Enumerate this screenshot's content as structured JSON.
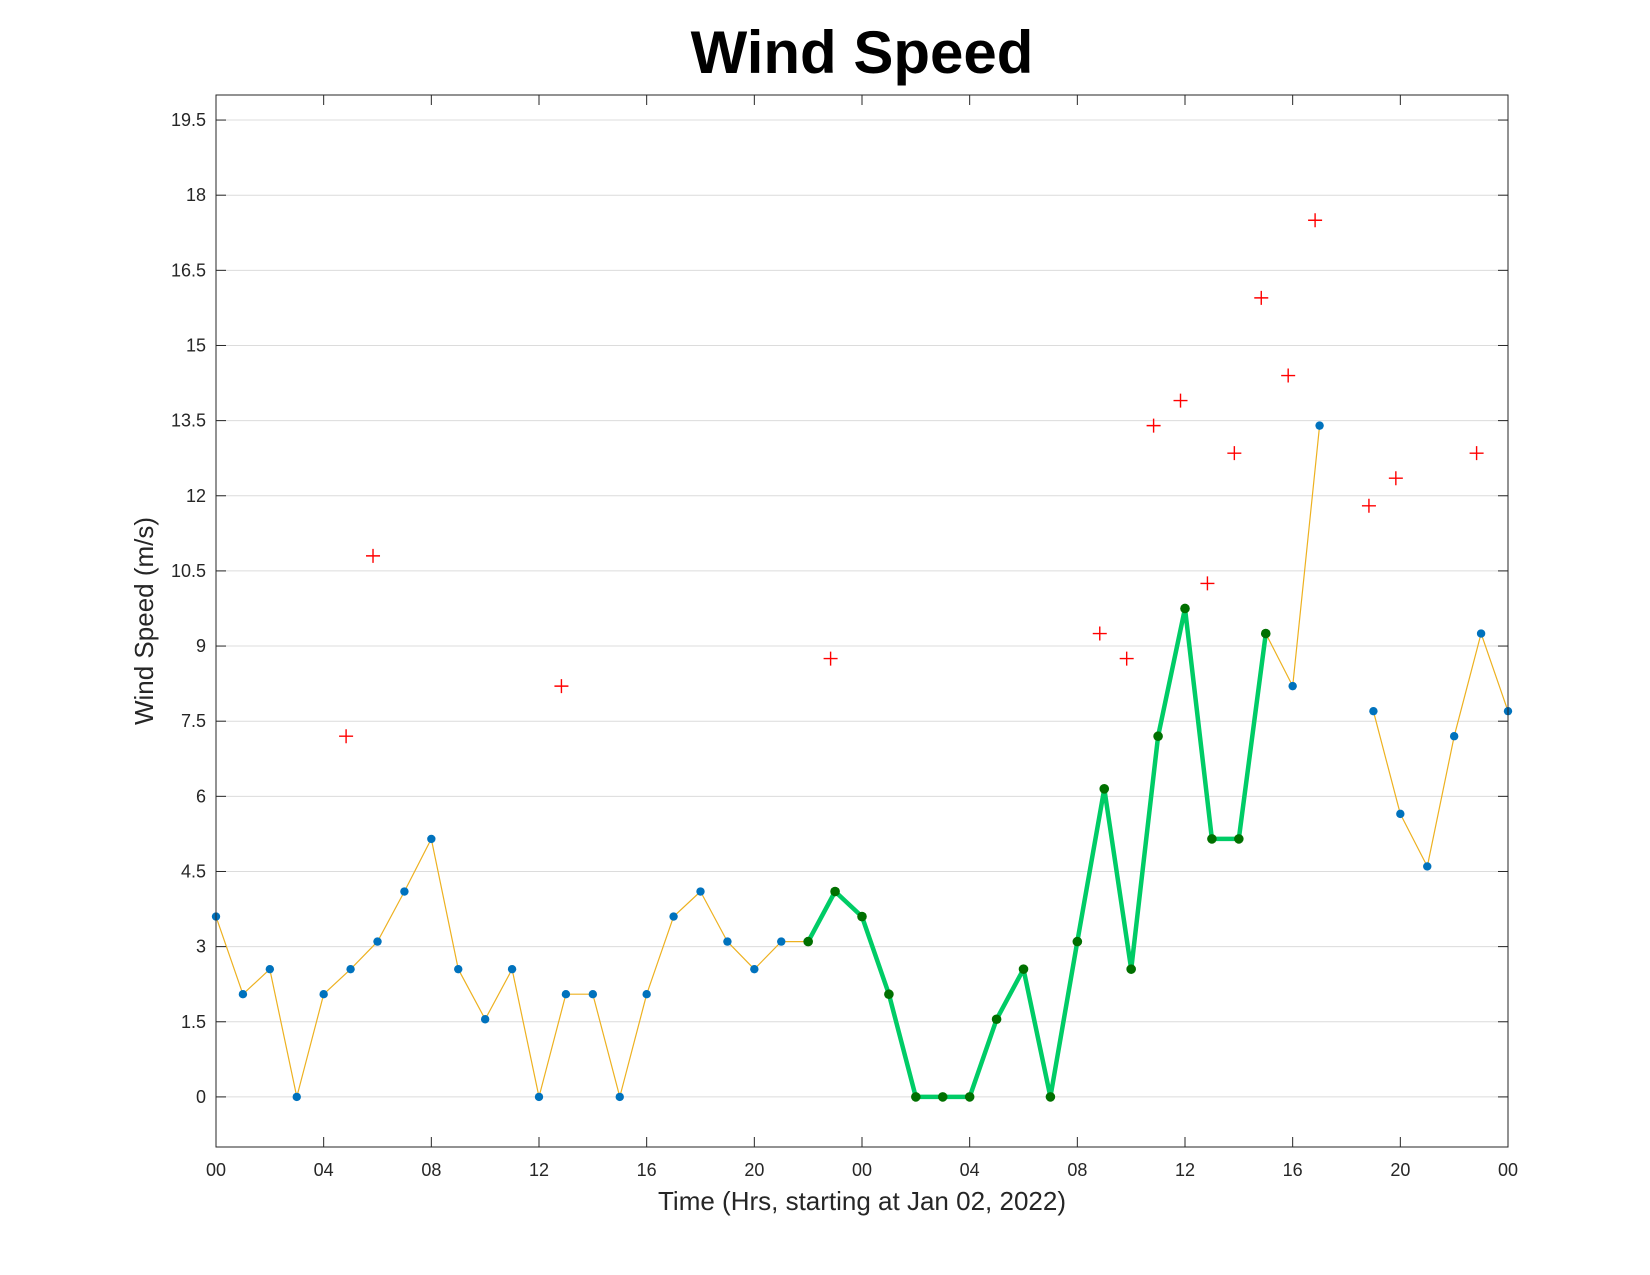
{
  "chart_data": {
    "type": "line",
    "title": "Wind Speed",
    "xlabel": "Time (Hrs, starting at Jan 02, 2022)",
    "ylabel": "Wind Speed (m/s)",
    "xlim": [
      "2022-01-02 00:00",
      "2022-01-04 00:00"
    ],
    "ylim": [
      -1,
      20
    ],
    "x_ticks": [
      "00",
      "04",
      "08",
      "12",
      "16",
      "20",
      "00",
      "04",
      "08",
      "12",
      "16",
      "20",
      "00"
    ],
    "y_ticks": [
      "0",
      "1.5",
      "3",
      "4.5",
      "6",
      "7.5",
      "9",
      "10.5",
      "12",
      "13.5",
      "15",
      "16.5",
      "18",
      "19.5"
    ],
    "y_tick_values": [
      0,
      1.5,
      3,
      4.5,
      6,
      7.5,
      9,
      10.5,
      12,
      13.5,
      15,
      16.5,
      18,
      19.5
    ],
    "grid": "horizontal",
    "series": [
      {
        "style": "thin orange line with blue dot markers",
        "color": "#EDB120",
        "marker_color": "#0072BD",
        "x": [
          "2022-01-02 00:00",
          "2022-01-02 01:00",
          "2022-01-02 02:00",
          "2022-01-02 03:00",
          "2022-01-02 04:00",
          "2022-01-02 05:00",
          "2022-01-02 06:00",
          "2022-01-02 07:00",
          "2022-01-02 08:00",
          "2022-01-02 09:00",
          "2022-01-02 10:00",
          "2022-01-02 11:00",
          "2022-01-02 12:00",
          "2022-01-02 13:00",
          "2022-01-02 14:00",
          "2022-01-02 15:00",
          "2022-01-02 16:00",
          "2022-01-02 17:00",
          "2022-01-02 18:00",
          "2022-01-02 19:00",
          "2022-01-02 20:00",
          "2022-01-02 21:00",
          "2022-01-02 22:00",
          null,
          "2022-01-03 15:00",
          "2022-01-03 16:00",
          "2022-01-03 17:00",
          null,
          "2022-01-03 19:00",
          "2022-01-03 20:00",
          "2022-01-03 21:00",
          "2022-01-03 22:00",
          "2022-01-03 23:00",
          "2022-01-04 00:00"
        ],
        "y": [
          3.6,
          2.05,
          2.55,
          0,
          2.05,
          2.55,
          3.1,
          4.1,
          5.15,
          2.55,
          1.55,
          2.55,
          0,
          2.05,
          2.05,
          0,
          2.05,
          3.6,
          4.1,
          3.1,
          2.55,
          3.1,
          3.1,
          null,
          9.25,
          8.2,
          13.4,
          null,
          7.7,
          5.65,
          4.6,
          7.2,
          9.25,
          7.7
        ]
      },
      {
        "style": "thick green line with dark green dot markers",
        "color": "#00CC66",
        "marker_color": "#007000",
        "x": [
          "2022-01-02 22:00",
          "2022-01-02 23:00",
          "2022-01-03 00:00",
          "2022-01-03 01:00",
          "2022-01-03 02:00",
          "2022-01-03 03:00",
          "2022-01-03 04:00",
          "2022-01-03 05:00",
          "2022-01-03 06:00",
          "2022-01-03 07:00",
          "2022-01-03 08:00",
          "2022-01-03 09:00",
          "2022-01-03 10:00",
          "2022-01-03 11:00",
          "2022-01-03 12:00",
          "2022-01-03 13:00",
          "2022-01-03 14:00",
          "2022-01-03 15:00"
        ],
        "y": [
          3.1,
          4.1,
          3.6,
          2.05,
          0,
          0,
          0,
          1.55,
          2.55,
          0,
          3.1,
          6.15,
          2.55,
          7.2,
          9.75,
          5.15,
          5.15,
          9.25
        ]
      },
      {
        "style": "red plus markers, no line",
        "color": "#FF0000",
        "x": [
          "2022-01-02 04:50",
          "2022-01-02 05:50",
          "2022-01-02 12:50",
          "2022-01-02 22:50",
          "2022-01-03 08:50",
          "2022-01-03 09:50",
          "2022-01-03 10:50",
          "2022-01-03 11:50",
          "2022-01-03 12:50",
          "2022-01-03 13:50",
          "2022-01-03 14:50",
          "2022-01-03 15:50",
          "2022-01-03 16:50",
          "2022-01-03 18:50",
          "2022-01-03 19:50",
          "2022-01-03 22:50"
        ],
        "y": [
          7.2,
          10.8,
          8.2,
          8.75,
          9.25,
          8.75,
          13.4,
          13.9,
          10.25,
          12.85,
          15.95,
          14.4,
          17.5,
          11.8,
          12.35,
          12.85
        ]
      }
    ]
  }
}
